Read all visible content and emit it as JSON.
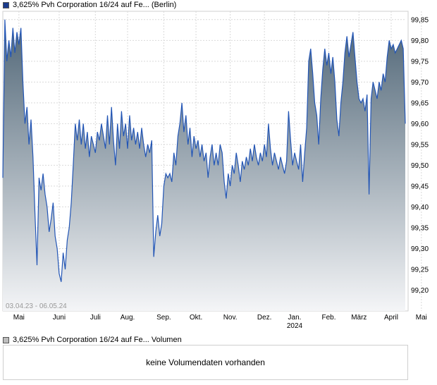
{
  "legend": {
    "price": {
      "label": "3,625% Pvh Corporation 16/24 auf Fe... (Berlin)",
      "color": "#1a3b8c"
    },
    "volume": {
      "label": "3,625% Pvh Corporation 16/24 auf Fe... Volumen",
      "color": "#bdbdbd"
    }
  },
  "range_label": "03.04.23 - 06.05.24",
  "volume_panel": {
    "message": "keine Volumendaten vorhanden"
  },
  "colors": {
    "line": "#2255b5",
    "fill_top": "#4f6576",
    "fill_bottom": "#f4f5f7",
    "grid": "#d9d9d9"
  },
  "chart_data": {
    "type": "area",
    "ylim": [
      99.15,
      99.87
    ],
    "yticks": [
      "99,20",
      "99,25",
      "99,30",
      "99,35",
      "99,40",
      "99,45",
      "99,50",
      "99,55",
      "99,60",
      "99,65",
      "99,70",
      "99,75",
      "99,80",
      "99,85"
    ],
    "xticks": [
      {
        "label": "Mai",
        "sublabel": "",
        "t": 0.04
      },
      {
        "label": "Juni",
        "sublabel": "",
        "t": 0.14
      },
      {
        "label": "Juli",
        "sublabel": "",
        "t": 0.23
      },
      {
        "label": "Aug.",
        "sublabel": "",
        "t": 0.31
      },
      {
        "label": "Sep.",
        "sublabel": "",
        "t": 0.4
      },
      {
        "label": "Okt.",
        "sublabel": "",
        "t": 0.48
      },
      {
        "label": "Nov.",
        "sublabel": "",
        "t": 0.565
      },
      {
        "label": "Dez.",
        "sublabel": "",
        "t": 0.65
      },
      {
        "label": "Jan.",
        "sublabel": "2024",
        "t": 0.725
      },
      {
        "label": "Feb.",
        "sublabel": "",
        "t": 0.81
      },
      {
        "label": "März",
        "sublabel": "",
        "t": 0.885
      },
      {
        "label": "April",
        "sublabel": "",
        "t": 0.965
      },
      {
        "label": "Mai",
        "sublabel": "",
        "t": 1.04
      }
    ],
    "series": [
      {
        "points": [
          [
            0.0,
            99.47
          ],
          [
            0.005,
            99.85
          ],
          [
            0.01,
            99.75
          ],
          [
            0.015,
            99.8
          ],
          [
            0.02,
            99.76
          ],
          [
            0.025,
            99.83
          ],
          [
            0.03,
            99.77
          ],
          [
            0.035,
            99.82
          ],
          [
            0.04,
            99.79
          ],
          [
            0.045,
            99.83
          ],
          [
            0.05,
            99.7
          ],
          [
            0.055,
            99.6
          ],
          [
            0.06,
            99.64
          ],
          [
            0.065,
            99.55
          ],
          [
            0.07,
            99.61
          ],
          [
            0.075,
            99.52
          ],
          [
            0.08,
            99.38
          ],
          [
            0.085,
            99.26
          ],
          [
            0.09,
            99.47
          ],
          [
            0.095,
            99.44
          ],
          [
            0.1,
            99.48
          ],
          [
            0.105,
            99.43
          ],
          [
            0.11,
            99.4
          ],
          [
            0.115,
            99.34
          ],
          [
            0.12,
            99.37
          ],
          [
            0.125,
            99.41
          ],
          [
            0.13,
            99.33
          ],
          [
            0.135,
            99.3
          ],
          [
            0.14,
            99.24
          ],
          [
            0.145,
            99.22
          ],
          [
            0.15,
            99.29
          ],
          [
            0.155,
            99.25
          ],
          [
            0.16,
            99.32
          ],
          [
            0.165,
            99.35
          ],
          [
            0.17,
            99.41
          ],
          [
            0.175,
            99.5
          ],
          [
            0.18,
            99.6
          ],
          [
            0.185,
            99.56
          ],
          [
            0.19,
            99.61
          ],
          [
            0.195,
            99.55
          ],
          [
            0.2,
            99.6
          ],
          [
            0.205,
            99.54
          ],
          [
            0.21,
            99.58
          ],
          [
            0.215,
            99.52
          ],
          [
            0.22,
            99.57
          ],
          [
            0.225,
            99.55
          ],
          [
            0.23,
            99.53
          ],
          [
            0.235,
            99.58
          ],
          [
            0.24,
            99.56
          ],
          [
            0.245,
            99.6
          ],
          [
            0.25,
            99.57
          ],
          [
            0.255,
            99.54
          ],
          [
            0.26,
            99.62
          ],
          [
            0.265,
            99.55
          ],
          [
            0.27,
            99.64
          ],
          [
            0.275,
            99.56
          ],
          [
            0.28,
            99.5
          ],
          [
            0.285,
            99.6
          ],
          [
            0.29,
            99.54
          ],
          [
            0.295,
            99.63
          ],
          [
            0.3,
            99.57
          ],
          [
            0.305,
            99.6
          ],
          [
            0.31,
            99.54
          ],
          [
            0.315,
            99.62
          ],
          [
            0.32,
            99.56
          ],
          [
            0.325,
            99.59
          ],
          [
            0.33,
            99.55
          ],
          [
            0.335,
            99.58
          ],
          [
            0.34,
            99.54
          ],
          [
            0.345,
            99.59
          ],
          [
            0.35,
            99.55
          ],
          [
            0.355,
            99.52
          ],
          [
            0.36,
            99.55
          ],
          [
            0.365,
            99.53
          ],
          [
            0.37,
            99.56
          ],
          [
            0.375,
            99.28
          ],
          [
            0.38,
            99.34
          ],
          [
            0.385,
            99.38
          ],
          [
            0.39,
            99.33
          ],
          [
            0.395,
            99.36
          ],
          [
            0.4,
            99.45
          ],
          [
            0.405,
            99.48
          ],
          [
            0.41,
            99.47
          ],
          [
            0.415,
            99.48
          ],
          [
            0.42,
            99.46
          ],
          [
            0.425,
            99.53
          ],
          [
            0.43,
            99.5
          ],
          [
            0.435,
            99.57
          ],
          [
            0.44,
            99.6
          ],
          [
            0.445,
            99.65
          ],
          [
            0.45,
            99.58
          ],
          [
            0.455,
            99.62
          ],
          [
            0.46,
            99.55
          ],
          [
            0.465,
            99.59
          ],
          [
            0.47,
            99.52
          ],
          [
            0.475,
            99.57
          ],
          [
            0.48,
            99.54
          ],
          [
            0.485,
            99.56
          ],
          [
            0.49,
            99.52
          ],
          [
            0.495,
            99.55
          ],
          [
            0.5,
            99.51
          ],
          [
            0.505,
            99.53
          ],
          [
            0.51,
            99.47
          ],
          [
            0.515,
            99.52
          ],
          [
            0.52,
            99.55
          ],
          [
            0.525,
            99.5
          ],
          [
            0.53,
            99.53
          ],
          [
            0.535,
            99.5
          ],
          [
            0.54,
            99.55
          ],
          [
            0.545,
            99.53
          ],
          [
            0.55,
            99.46
          ],
          [
            0.555,
            99.42
          ],
          [
            0.56,
            99.48
          ],
          [
            0.565,
            99.45
          ],
          [
            0.57,
            99.5
          ],
          [
            0.575,
            99.48
          ],
          [
            0.58,
            99.53
          ],
          [
            0.585,
            99.5
          ],
          [
            0.59,
            99.46
          ],
          [
            0.595,
            99.51
          ],
          [
            0.6,
            99.49
          ],
          [
            0.605,
            99.52
          ],
          [
            0.61,
            99.5
          ],
          [
            0.615,
            99.54
          ],
          [
            0.62,
            99.51
          ],
          [
            0.625,
            99.55
          ],
          [
            0.63,
            99.52
          ],
          [
            0.635,
            99.5
          ],
          [
            0.64,
            99.53
          ],
          [
            0.645,
            99.51
          ],
          [
            0.65,
            99.55
          ],
          [
            0.655,
            99.52
          ],
          [
            0.66,
            99.6
          ],
          [
            0.665,
            99.54
          ],
          [
            0.67,
            99.5
          ],
          [
            0.675,
            99.53
          ],
          [
            0.68,
            99.51
          ],
          [
            0.685,
            99.49
          ],
          [
            0.69,
            99.52
          ],
          [
            0.695,
            99.5
          ],
          [
            0.7,
            99.48
          ],
          [
            0.705,
            99.51
          ],
          [
            0.71,
            99.63
          ],
          [
            0.715,
            99.56
          ],
          [
            0.72,
            99.5
          ],
          [
            0.725,
            99.53
          ],
          [
            0.73,
            99.51
          ],
          [
            0.735,
            99.49
          ],
          [
            0.74,
            99.55
          ],
          [
            0.745,
            99.46
          ],
          [
            0.75,
            99.53
          ],
          [
            0.755,
            99.59
          ],
          [
            0.76,
            99.75
          ],
          [
            0.765,
            99.78
          ],
          [
            0.77,
            99.72
          ],
          [
            0.775,
            99.65
          ],
          [
            0.78,
            99.62
          ],
          [
            0.785,
            99.55
          ],
          [
            0.79,
            99.66
          ],
          [
            0.795,
            99.73
          ],
          [
            0.8,
            99.78
          ],
          [
            0.805,
            99.74
          ],
          [
            0.81,
            99.77
          ],
          [
            0.815,
            99.72
          ],
          [
            0.82,
            99.76
          ],
          [
            0.825,
            99.7
          ],
          [
            0.83,
            99.61
          ],
          [
            0.835,
            99.57
          ],
          [
            0.84,
            99.65
          ],
          [
            0.845,
            99.7
          ],
          [
            0.85,
            99.77
          ],
          [
            0.855,
            99.81
          ],
          [
            0.86,
            99.76
          ],
          [
            0.865,
            99.79
          ],
          [
            0.87,
            99.82
          ],
          [
            0.875,
            99.76
          ],
          [
            0.88,
            99.7
          ],
          [
            0.885,
            99.66
          ],
          [
            0.89,
            99.65
          ],
          [
            0.895,
            99.66
          ],
          [
            0.9,
            99.63
          ],
          [
            0.905,
            99.67
          ],
          [
            0.91,
            99.43
          ],
          [
            0.915,
            99.66
          ],
          [
            0.92,
            99.7
          ],
          [
            0.925,
            99.68
          ],
          [
            0.93,
            99.66
          ],
          [
            0.935,
            99.7
          ],
          [
            0.94,
            99.68
          ],
          [
            0.945,
            99.72
          ],
          [
            0.95,
            99.7
          ],
          [
            0.955,
            99.76
          ],
          [
            0.96,
            99.8
          ],
          [
            0.965,
            99.78
          ],
          [
            0.97,
            99.79
          ],
          [
            0.975,
            99.77
          ],
          [
            0.98,
            99.78
          ],
          [
            0.985,
            99.79
          ],
          [
            0.99,
            99.8
          ],
          [
            0.995,
            99.78
          ],
          [
            1.0,
            99.6
          ]
        ]
      }
    ]
  }
}
